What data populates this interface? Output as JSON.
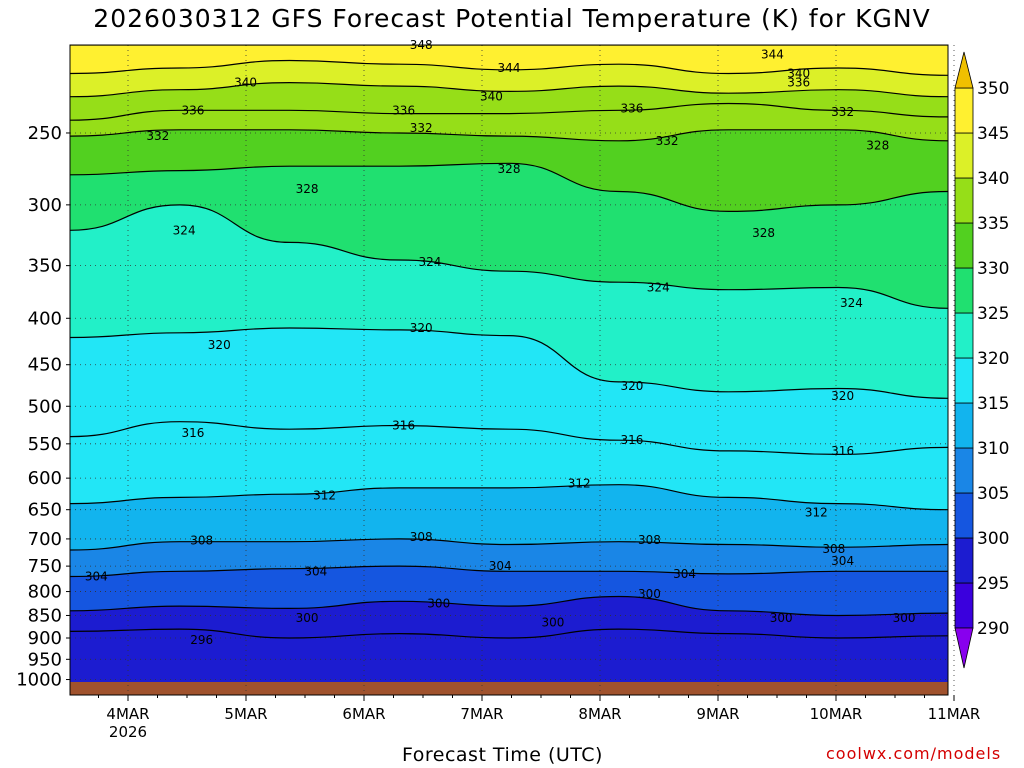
{
  "title": "2026030312 GFS Forecast Potential Temperature (K) for KGNV",
  "credit": "coolwx.com/models",
  "chart_data": {
    "type": "heatmap",
    "title": "2026030312 GFS Forecast Potential Temperature (K) for KGNV",
    "xlabel": "Forecast Time (UTC)",
    "ylabel": "",
    "x_ticks": [
      "4MAR",
      "5MAR",
      "6MAR",
      "7MAR",
      "8MAR",
      "9MAR",
      "10MAR",
      "11MAR"
    ],
    "x_year_label": "2026",
    "y_ticks": [
      250,
      300,
      350,
      400,
      450,
      500,
      550,
      600,
      650,
      700,
      750,
      800,
      850,
      900,
      950,
      1000
    ],
    "y_scale": "log-pressure, inverted",
    "colorbar": {
      "levels": [
        290,
        295,
        300,
        305,
        310,
        315,
        320,
        325,
        330,
        335,
        340,
        345,
        350
      ],
      "colors": [
        "#8800ee",
        "#3a00dd",
        "#1c1cd0",
        "#1556e0",
        "#1a86e6",
        "#12b4ee",
        "#22e6f6",
        "#22f0c8",
        "#20e070",
        "#52d020",
        "#96de18",
        "#dcf028",
        "#fff030",
        "#f0c000"
      ]
    },
    "contours": [
      {
        "value": 348,
        "p": [
          200,
          200,
          200,
          200,
          200,
          200,
          200,
          200,
          200
        ]
      },
      {
        "value": 344,
        "p": [
          215,
          212,
          208,
          210,
          213,
          210,
          215,
          212,
          216
        ]
      },
      {
        "value": 340,
        "p": [
          228,
          224,
          220,
          222,
          225,
          222,
          226,
          224,
          228
        ]
      },
      {
        "value": 336,
        "p": [
          242,
          236,
          236,
          238,
          238,
          236,
          232,
          236,
          240
        ]
      },
      {
        "value": 332,
        "p": [
          252,
          248,
          248,
          250,
          252,
          255,
          248,
          248,
          255
        ]
      },
      {
        "value": 328,
        "p": [
          278,
          275,
          272,
          272,
          270,
          290,
          305,
          300,
          290
        ]
      },
      {
        "value": 324,
        "p": [
          320,
          300,
          330,
          345,
          355,
          365,
          372,
          370,
          390
        ]
      },
      {
        "value": 320,
        "p": [
          420,
          415,
          410,
          412,
          418,
          470,
          482,
          478,
          490
        ]
      },
      {
        "value": 316,
        "p": [
          540,
          520,
          530,
          525,
          530,
          545,
          560,
          565,
          555
        ]
      },
      {
        "value": 312,
        "p": [
          640,
          630,
          625,
          615,
          615,
          610,
          630,
          640,
          650
        ]
      },
      {
        "value": 308,
        "p": [
          720,
          705,
          705,
          700,
          710,
          705,
          710,
          715,
          710
        ]
      },
      {
        "value": 304,
        "p": [
          770,
          760,
          755,
          750,
          760,
          760,
          765,
          760,
          760
        ]
      },
      {
        "value": 300,
        "p": [
          840,
          830,
          835,
          820,
          830,
          810,
          840,
          850,
          845
        ]
      },
      {
        "value": 296,
        "p": [
          885,
          880,
          900,
          890,
          900,
          880,
          890,
          900,
          895
        ]
      }
    ],
    "contour_labels": [
      {
        "text": "348",
        "t": 0.4,
        "p": 200
      },
      {
        "text": "344",
        "t": 0.5,
        "p": 212
      },
      {
        "text": "344",
        "t": 0.8,
        "p": 205
      },
      {
        "text": "340",
        "t": 0.2,
        "p": 220
      },
      {
        "text": "340",
        "t": 0.48,
        "p": 228
      },
      {
        "text": "340",
        "t": 0.83,
        "p": 215
      },
      {
        "text": "336",
        "t": 0.83,
        "p": 220
      },
      {
        "text": "336",
        "t": 0.14,
        "p": 236
      },
      {
        "text": "336",
        "t": 0.38,
        "p": 236
      },
      {
        "text": "336",
        "t": 0.64,
        "p": 235
      },
      {
        "text": "332",
        "t": 0.1,
        "p": 252
      },
      {
        "text": "332",
        "t": 0.4,
        "p": 247
      },
      {
        "text": "332",
        "t": 0.68,
        "p": 255
      },
      {
        "text": "332",
        "t": 0.88,
        "p": 237
      },
      {
        "text": "328",
        "t": 0.5,
        "p": 274
      },
      {
        "text": "328",
        "t": 0.27,
        "p": 288
      },
      {
        "text": "328",
        "t": 0.92,
        "p": 258
      },
      {
        "text": "328",
        "t": 0.79,
        "p": 322
      },
      {
        "text": "324",
        "t": 0.13,
        "p": 320
      },
      {
        "text": "324",
        "t": 0.41,
        "p": 347
      },
      {
        "text": "324",
        "t": 0.67,
        "p": 370
      },
      {
        "text": "324",
        "t": 0.89,
        "p": 385
      },
      {
        "text": "320",
        "t": 0.17,
        "p": 428
      },
      {
        "text": "320",
        "t": 0.4,
        "p": 410
      },
      {
        "text": "320",
        "t": 0.64,
        "p": 475
      },
      {
        "text": "320",
        "t": 0.88,
        "p": 487
      },
      {
        "text": "316",
        "t": 0.14,
        "p": 535
      },
      {
        "text": "316",
        "t": 0.38,
        "p": 525
      },
      {
        "text": "316",
        "t": 0.64,
        "p": 545
      },
      {
        "text": "316",
        "t": 0.88,
        "p": 560
      },
      {
        "text": "312",
        "t": 0.29,
        "p": 627
      },
      {
        "text": "312",
        "t": 0.58,
        "p": 608
      },
      {
        "text": "312",
        "t": 0.85,
        "p": 655
      },
      {
        "text": "308",
        "t": 0.15,
        "p": 703
      },
      {
        "text": "308",
        "t": 0.4,
        "p": 697
      },
      {
        "text": "308",
        "t": 0.66,
        "p": 702
      },
      {
        "text": "308",
        "t": 0.87,
        "p": 718
      },
      {
        "text": "304",
        "t": 0.03,
        "p": 770
      },
      {
        "text": "304",
        "t": 0.28,
        "p": 760
      },
      {
        "text": "304",
        "t": 0.49,
        "p": 750
      },
      {
        "text": "304",
        "t": 0.7,
        "p": 765
      },
      {
        "text": "304",
        "t": 0.88,
        "p": 740
      },
      {
        "text": "300",
        "t": 0.27,
        "p": 855
      },
      {
        "text": "300",
        "t": 0.42,
        "p": 825
      },
      {
        "text": "300",
        "t": 0.55,
        "p": 865
      },
      {
        "text": "300",
        "t": 0.66,
        "p": 805
      },
      {
        "text": "300",
        "t": 0.81,
        "p": 855
      },
      {
        "text": "300",
        "t": 0.95,
        "p": 855
      },
      {
        "text": "296",
        "t": 0.15,
        "p": 905
      }
    ]
  }
}
